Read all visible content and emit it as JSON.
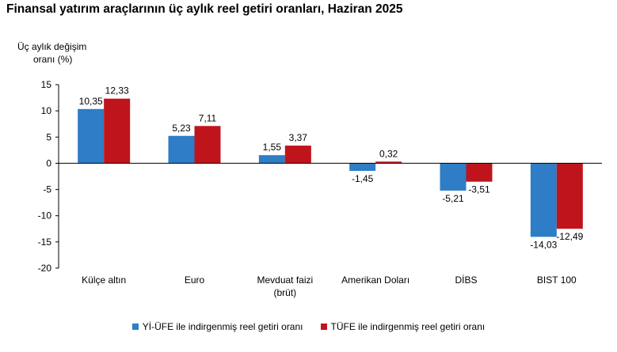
{
  "title": "Finansal yatırım araçlarının üç aylık reel getiri oranları, Haziran 2025",
  "ylabel_lines": [
    "Üç aylık değişim",
    "oranı (%)"
  ],
  "colors": {
    "series1": "#2e7dc6",
    "series2": "#c0141d"
  },
  "chart_data": {
    "type": "bar",
    "title": "Finansal yatırım araçlarının üç aylık reel getiri oranları, Haziran 2025",
    "ylabel": "Üç aylık değişim oranı (%)",
    "xlabel": "",
    "ylim": [
      -20,
      15
    ],
    "yticks": [
      15,
      10,
      5,
      0,
      -5,
      -10,
      -15,
      -20
    ],
    "grid": false,
    "legend_position": "bottom",
    "categories": [
      [
        "Külçe altın"
      ],
      [
        "Euro"
      ],
      [
        "Mevduat faizi",
        "(brüt)"
      ],
      [
        "Amerikan Doları"
      ],
      [
        "DİBS"
      ],
      [
        "BIST 100"
      ]
    ],
    "series": [
      {
        "name": "Yİ-ÜFE ile indirgenmiş reel getiri oranı",
        "values": [
          10.35,
          5.23,
          1.55,
          -1.45,
          -5.21,
          -14.03
        ],
        "labels": [
          "10,35",
          "5,23",
          "1,55",
          "-1,45",
          "-5,21",
          "-14,03"
        ]
      },
      {
        "name": "TÜFE ile indirgenmiş reel getiri oranı",
        "values": [
          12.33,
          7.11,
          3.37,
          0.32,
          -3.51,
          -12.49
        ],
        "labels": [
          "12,33",
          "7,11",
          "3,37",
          "0,32",
          "-3,51",
          "-12,49"
        ]
      }
    ]
  }
}
